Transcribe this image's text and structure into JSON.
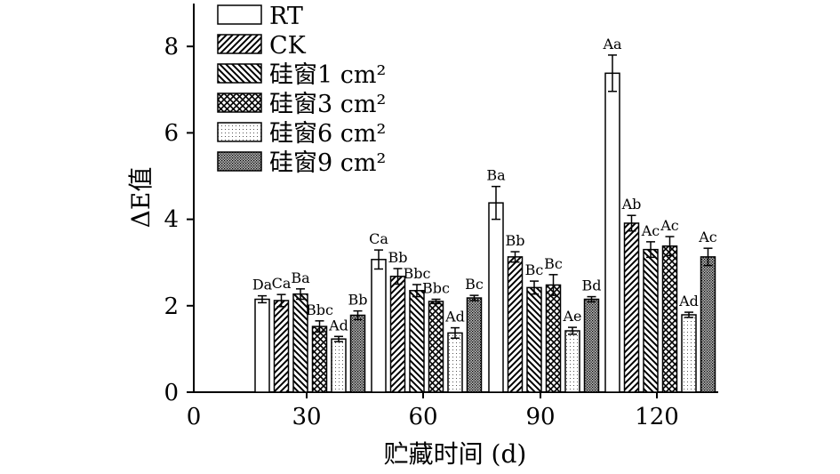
{
  "chart_data": {
    "type": "bar",
    "xlabel": "贮藏时间 (d)",
    "ylabel": "ΔE值",
    "ylim": [
      0,
      9
    ],
    "y_ticks": [
      "0",
      "2",
      "4",
      "6",
      "8"
    ],
    "x_origin_label": "0",
    "categories": [
      "30",
      "60",
      "90",
      "120"
    ],
    "legend_position": "top-left",
    "series": [
      {
        "name": "RT",
        "pattern": "open",
        "values": [
          2.15,
          3.07,
          4.38,
          7.38
        ],
        "errors": [
          0.08,
          0.22,
          0.38,
          0.42
        ],
        "labels": [
          "Da",
          "Ca",
          "Ba",
          "Aa"
        ]
      },
      {
        "name": "CK",
        "pattern": "diagonal",
        "values": [
          2.12,
          2.68,
          3.13,
          3.91
        ],
        "errors": [
          0.14,
          0.18,
          0.12,
          0.18
        ],
        "labels": [
          "Ca",
          "Bb",
          "Bb",
          "Ab"
        ]
      },
      {
        "name": "硅窗1 cm²",
        "pattern": "back-diagonal",
        "values": [
          2.27,
          2.35,
          2.42,
          3.3
        ],
        "errors": [
          0.12,
          0.14,
          0.15,
          0.18
        ],
        "labels": [
          "Ba",
          "Bbc",
          "Bc",
          "Ac"
        ]
      },
      {
        "name": "硅窗3 cm²",
        "pattern": "crosshatch",
        "values": [
          1.52,
          2.1,
          2.48,
          3.38
        ],
        "errors": [
          0.13,
          0.05,
          0.24,
          0.22
        ],
        "labels": [
          "Bbc",
          "Bbc",
          "Bc",
          "Ac"
        ]
      },
      {
        "name": "硅窗6 cm²",
        "pattern": "light-dots",
        "values": [
          1.23,
          1.37,
          1.42,
          1.79
        ],
        "errors": [
          0.06,
          0.12,
          0.08,
          0.06
        ],
        "labels": [
          "Ad",
          "Ad",
          "Ae",
          "Ad"
        ]
      },
      {
        "name": "硅窗9 cm²",
        "pattern": "dense-dots",
        "values": [
          1.78,
          2.18,
          2.15,
          3.13
        ],
        "errors": [
          0.1,
          0.06,
          0.06,
          0.2
        ],
        "labels": [
          "Bb",
          "Bc",
          "Bd",
          "Ac"
        ]
      }
    ]
  }
}
